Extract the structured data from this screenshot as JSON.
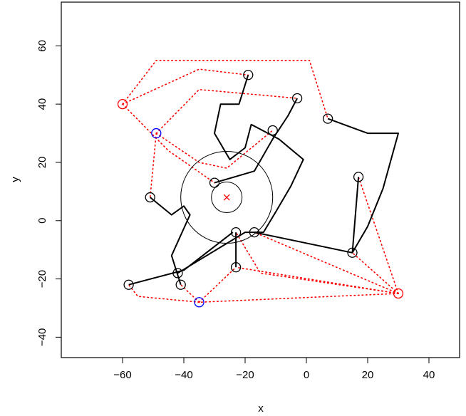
{
  "chart_data": {
    "type": "scatter",
    "title": "",
    "xlabel": "x",
    "ylabel": "y",
    "xlim": [
      -80,
      50
    ],
    "ylim": [
      -47,
      75
    ],
    "xticks": [
      -60,
      -40,
      -20,
      0,
      20,
      40
    ],
    "yticks": [
      -40,
      -20,
      0,
      20,
      40,
      60
    ],
    "grid": false,
    "colors": {
      "black": "#000000",
      "red": "#ff0000",
      "blue": "#0000ff"
    },
    "points": [
      {
        "x": -19,
        "y": 50,
        "color": "black"
      },
      {
        "x": -3,
        "y": 42,
        "color": "black"
      },
      {
        "x": 7,
        "y": 35,
        "color": "black"
      },
      {
        "x": -11,
        "y": 31,
        "color": "black"
      },
      {
        "x": 17,
        "y": 15,
        "color": "black"
      },
      {
        "x": -30,
        "y": 13,
        "color": "black"
      },
      {
        "x": -51,
        "y": 8,
        "color": "black"
      },
      {
        "x": -23,
        "y": -4,
        "color": "black"
      },
      {
        "x": -17,
        "y": -4,
        "color": "black"
      },
      {
        "x": 15,
        "y": -11,
        "color": "black"
      },
      {
        "x": -23,
        "y": -16,
        "color": "black"
      },
      {
        "x": -42,
        "y": -18,
        "color": "black"
      },
      {
        "x": -58,
        "y": -22,
        "color": "black"
      },
      {
        "x": -41,
        "y": -22,
        "color": "black"
      },
      {
        "x": -60,
        "y": 40,
        "color": "red"
      },
      {
        "x": 30,
        "y": -25,
        "color": "red"
      },
      {
        "x": -49,
        "y": 30,
        "color": "blue"
      },
      {
        "x": -35,
        "y": -28,
        "color": "blue"
      }
    ],
    "solid_paths": [
      [
        [
          -19,
          50
        ],
        [
          -22,
          40
        ],
        [
          -28,
          40
        ],
        [
          -30,
          30
        ],
        [
          -25,
          21
        ],
        [
          -20,
          25
        ],
        [
          -18,
          33
        ],
        [
          -9,
          28
        ],
        [
          -1,
          21
        ],
        [
          -5,
          12
        ],
        [
          -10,
          3
        ],
        [
          -14,
          -4
        ],
        [
          -17,
          -4
        ]
      ],
      [
        [
          -3,
          42
        ],
        [
          -6,
          36
        ],
        [
          -11,
          28
        ],
        [
          -17,
          17
        ],
        [
          -30,
          13
        ]
      ],
      [
        [
          7,
          35
        ],
        [
          20,
          30
        ],
        [
          30,
          30
        ],
        [
          25,
          11
        ],
        [
          20,
          -2
        ],
        [
          15,
          -11
        ],
        [
          17,
          15
        ]
      ],
      [
        [
          15,
          -11
        ],
        [
          -17,
          -4
        ],
        [
          -20,
          -4
        ],
        [
          -42,
          -18
        ]
      ],
      [
        [
          -23,
          -4
        ],
        [
          -23,
          -16
        ]
      ],
      [
        [
          -51,
          8
        ],
        [
          -44,
          2
        ],
        [
          -40,
          5
        ],
        [
          -38,
          2
        ],
        [
          -44,
          -12
        ],
        [
          -41,
          -22
        ]
      ],
      [
        [
          -58,
          -22
        ],
        [
          -40,
          -17
        ],
        [
          -24,
          -4
        ]
      ]
    ],
    "dotted_paths": [
      [
        [
          -60,
          40
        ],
        [
          -49,
          55
        ],
        [
          1,
          55
        ],
        [
          7,
          35
        ]
      ],
      [
        [
          -60,
          40
        ],
        [
          -35,
          52
        ],
        [
          -19,
          50
        ]
      ],
      [
        [
          -49,
          30
        ],
        [
          -35,
          45
        ],
        [
          -3,
          42
        ]
      ],
      [
        [
          -60,
          40
        ],
        [
          -45,
          24
        ],
        [
          -30,
          13
        ]
      ],
      [
        [
          -49,
          30
        ],
        [
          -35,
          20
        ],
        [
          -26,
          18
        ],
        [
          -11,
          31
        ]
      ],
      [
        [
          -49,
          30
        ],
        [
          -51,
          8
        ]
      ],
      [
        [
          30,
          -25
        ],
        [
          17,
          15
        ]
      ],
      [
        [
          30,
          -25
        ],
        [
          15,
          -11
        ]
      ],
      [
        [
          30,
          -25
        ],
        [
          -17,
          -4
        ]
      ],
      [
        [
          30,
          -25
        ],
        [
          -15,
          -18
        ],
        [
          -23,
          -4
        ]
      ],
      [
        [
          30,
          -25
        ],
        [
          -23,
          -16
        ]
      ],
      [
        [
          30,
          -25
        ],
        [
          -35,
          -28
        ]
      ],
      [
        [
          -35,
          -28
        ],
        [
          -41,
          -22
        ]
      ],
      [
        [
          -35,
          -28
        ],
        [
          -55,
          -26
        ],
        [
          -58,
          -22
        ]
      ],
      [
        [
          -35,
          -28
        ],
        [
          -23,
          -16
        ]
      ]
    ],
    "center_marker": {
      "x": -26,
      "y": 8,
      "color": "red",
      "symbol": "x"
    },
    "center_circles": [
      {
        "x": -26,
        "y": 8,
        "r": 5
      },
      {
        "x": -26,
        "y": 8,
        "r": 15
      }
    ]
  }
}
